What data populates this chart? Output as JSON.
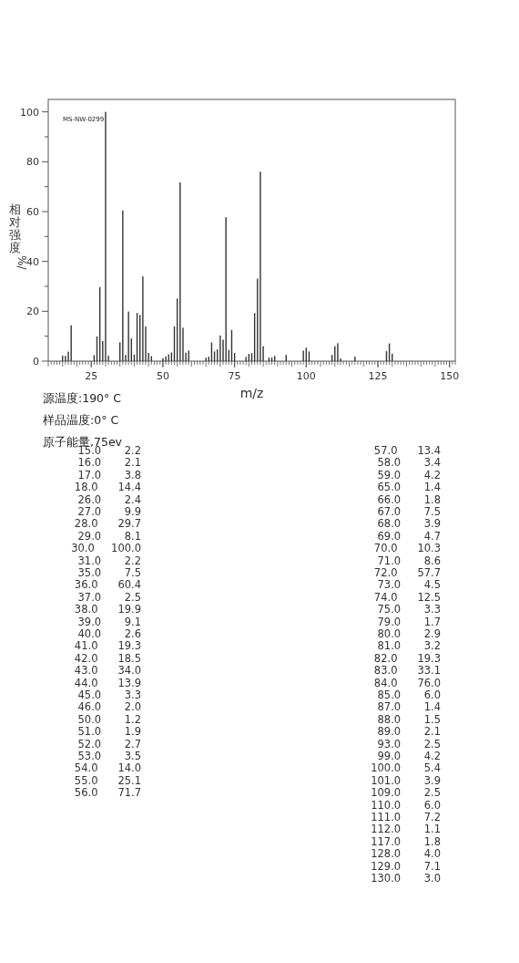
{
  "chart_data": [
    {
      "type": "bar",
      "xlabel": "m/z",
      "ylabel": "相对强度%/",
      "annotations": [
        {
          "text": "MS-NW-0299"
        },
        "源温度:190° C",
        "样品温度:0° C",
        "原子能量,75ev"
      ],
      "x": [
        15,
        16,
        17,
        18,
        26,
        27,
        28,
        29,
        30,
        31,
        35,
        36,
        37,
        38,
        39,
        40,
        41,
        42,
        43,
        44,
        45,
        46,
        50,
        51,
        52,
        53,
        54,
        55,
        56,
        57,
        58,
        59,
        65,
        66,
        67,
        68,
        69,
        70,
        71,
        72,
        73,
        74,
        75,
        79,
        80,
        81,
        82,
        83,
        84,
        85,
        87,
        88,
        89,
        93,
        99,
        100,
        101,
        109,
        110,
        111,
        112,
        117,
        128,
        129,
        130
      ],
      "values": [
        2.2,
        2.1,
        3.8,
        14.4,
        2.4,
        9.9,
        29.7,
        8.1,
        100.0,
        2.2,
        7.5,
        60.4,
        2.5,
        19.9,
        9.1,
        2.6,
        19.3,
        18.5,
        34.0,
        13.9,
        3.3,
        2.0,
        1.2,
        1.9,
        2.7,
        3.5,
        14.0,
        25.1,
        71.7,
        13.4,
        3.4,
        4.2,
        1.4,
        1.8,
        7.5,
        3.9,
        4.7,
        10.3,
        8.6,
        57.7,
        4.5,
        12.5,
        3.3,
        1.7,
        2.9,
        3.2,
        19.3,
        33.1,
        76.0,
        6.0,
        1.4,
        1.5,
        2.1,
        2.5,
        4.2,
        5.4,
        3.9,
        2.5,
        6.0,
        7.2,
        1.1,
        1.8,
        4.0,
        7.1,
        3.0
      ],
      "color": "#333333",
      "xlim": [
        10,
        152
      ],
      "xticks": [
        25,
        50,
        75,
        100,
        125,
        150
      ],
      "ylim": [
        0,
        105
      ],
      "yticks": [
        0,
        20,
        40,
        60,
        80,
        100
      ]
    },
    {
      "type": "other",
      "annotations": [
        " 15.0       2.2",
        " 16.0       2.1",
        " 17.0       3.8",
        " 18.0      14.4",
        " 26.0       2.4",
        " 27.0       9.9",
        " 28.0      29.7",
        " 29.0       8.1",
        " 30.0     100.0",
        " 31.0       2.2",
        " 35.0       7.5",
        " 36.0      60.4",
        " 37.0       2.5",
        " 38.0      19.9",
        " 39.0       9.1",
        " 40.0       2.6",
        " 41.0      19.3",
        " 42.0      18.5",
        " 43.0      34.0",
        " 44.0      13.9",
        " 45.0       3.3",
        " 46.0       2.0",
        " 50.0       1.2",
        " 51.0       1.9",
        " 52.0       2.7",
        " 53.0       3.5",
        " 54.0      14.0",
        " 55.0      25.1",
        " 56.0      71.7",
        " 57.0      13.4",
        " 58.0       3.4",
        " 59.0       4.2",
        " 65.0       1.4",
        " 66.0       1.8",
        " 67.0       7.5",
        " 68.0       3.9",
        " 69.0       4.7",
        " 70.0      10.3",
        " 71.0       8.6",
        " 72.0      57.7",
        " 73.0       4.5",
        " 74.0      12.5",
        " 75.0       3.3",
        " 79.0       1.7",
        " 80.0       2.9",
        " 81.0       3.2",
        " 82.0      19.3",
        " 83.0      33.1",
        " 84.0      76.0",
        " 85.0       6.0",
        " 87.0       1.4",
        " 88.0       1.5",
        " 89.0       2.1",
        " 93.0       2.5",
        " 99.0       4.2",
        "100.0       5.4",
        "101.0       3.9",
        "109.0       2.5",
        "110.0       6.0",
        "111.0       7.2",
        "112.0       1.1",
        "117.0       1.8",
        "128.0       4.0",
        "129.0       7.1",
        "130.0       3.0"
      ]
    }
  ]
}
